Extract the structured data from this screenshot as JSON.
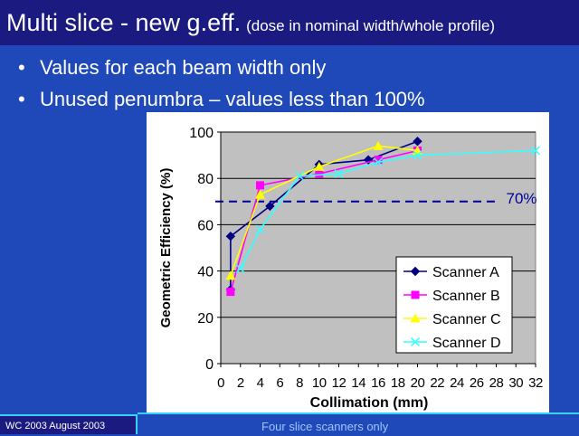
{
  "slide": {
    "title_main": "Multi slice - new g.eff.",
    "title_sub": "(dose in nominal width/whole profile)",
    "bullets": [
      "Values for each beam width only",
      "Unused penumbra – values less than 100%"
    ],
    "footer_left": "WC 2003 August 2003",
    "footer_center": "Four slice scanners only"
  },
  "colors": {
    "background": "#1f49b8",
    "title_bar": "#1a1a80",
    "accent_line": "#33d4ff",
    "plot_area": "#c0c0c0",
    "chart_bg": "#ffffff"
  },
  "chart_data": {
    "type": "line",
    "title": "",
    "xlabel": "Collimation (mm)",
    "ylabel": "Geometric Efficiency (%)",
    "xlim": [
      0,
      32
    ],
    "ylim": [
      0,
      100
    ],
    "xticks": [
      0,
      2,
      4,
      6,
      8,
      10,
      12,
      14,
      16,
      18,
      20,
      22,
      24,
      26,
      28,
      30,
      32
    ],
    "yticks": [
      0,
      20,
      40,
      60,
      80,
      100
    ],
    "grid": "horizontal",
    "legend": "bottom-right",
    "series": [
      {
        "name": "Scanner A",
        "color": "#000080",
        "marker": "diamond",
        "x": [
          1,
          1,
          5,
          10,
          15,
          20
        ],
        "y": [
          32,
          55,
          68,
          86,
          88,
          96
        ]
      },
      {
        "name": "Scanner B",
        "color": "#ff00ff",
        "marker": "square",
        "x": [
          1,
          4,
          10,
          16,
          20
        ],
        "y": [
          31,
          77,
          82,
          88,
          92
        ]
      },
      {
        "name": "Scanner C",
        "color": "#ffff00",
        "marker": "triangle",
        "x": [
          1,
          4,
          10,
          16,
          20
        ],
        "y": [
          38,
          73,
          85,
          94,
          92
        ]
      },
      {
        "name": "Scanner D",
        "color": "#33ffff",
        "marker": "x",
        "x": [
          2,
          4,
          8,
          12,
          16,
          20,
          32
        ],
        "y": [
          41,
          58,
          81,
          82,
          87,
          90,
          92
        ]
      }
    ],
    "reference_line": {
      "y": 70,
      "label": "70%",
      "color": "#000099",
      "x_start": 0,
      "x_end": 28
    }
  }
}
